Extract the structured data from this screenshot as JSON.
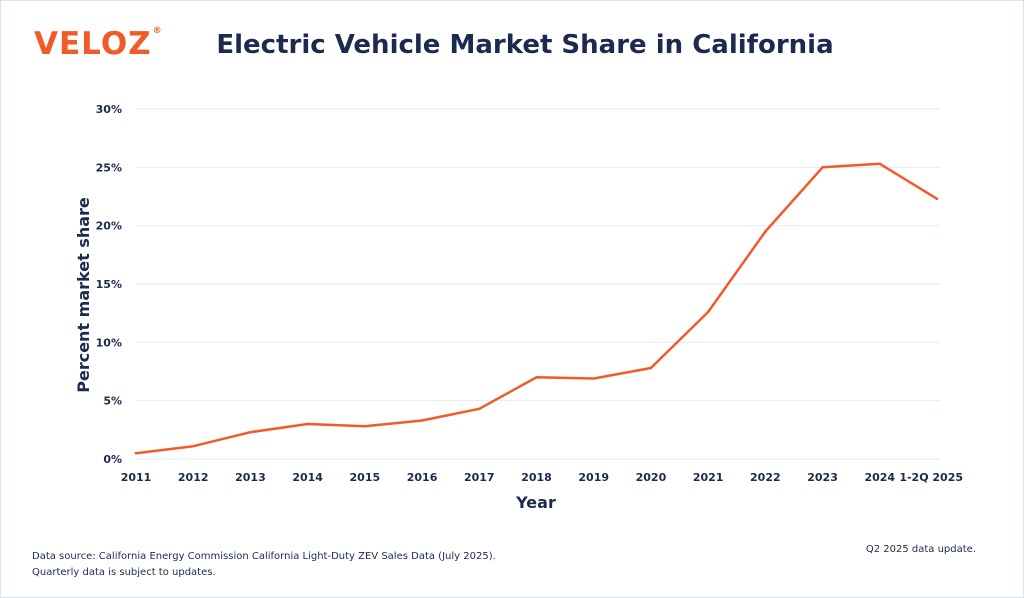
{
  "header": {
    "logo_text": "VELOZ",
    "logo_mark": "®",
    "title": "Electric Vehicle Market Share in California"
  },
  "footer": {
    "source_line1": "Data source: California Energy Commission California Light-Duty ZEV Sales Data (July 2025).",
    "source_line2": "Quarterly data is subject to updates.",
    "update_note": "Q2 2025 data update."
  },
  "colors": {
    "brand": "#f15a29",
    "line": "#f15a29",
    "text": "#1b2a4e",
    "grid": "#e6ebf2"
  },
  "chart_data": {
    "type": "line",
    "title": "Electric Vehicle Market Share in California",
    "xlabel": "Year",
    "ylabel": "Percent market share",
    "categories": [
      "2011",
      "2012",
      "2013",
      "2014",
      "2015",
      "2016",
      "2017",
      "2018",
      "2019",
      "2020",
      "2021",
      "2022",
      "2023",
      "2024",
      "1-2Q 2025"
    ],
    "series": [
      {
        "values": [
          0.5,
          1.1,
          2.3,
          3.0,
          2.8,
          3.3,
          4.3,
          7.0,
          6.9,
          7.8,
          12.6,
          19.5,
          25.0,
          25.3,
          22.3
        ]
      }
    ],
    "y_ticks": [
      0,
      5,
      10,
      15,
      20,
      25,
      30
    ],
    "y_tick_labels": [
      "0%",
      "5%",
      "10%",
      "15%",
      "20%",
      "25%",
      "30%"
    ],
    "ylim": [
      0,
      30
    ],
    "grid": true,
    "legend": "none"
  }
}
